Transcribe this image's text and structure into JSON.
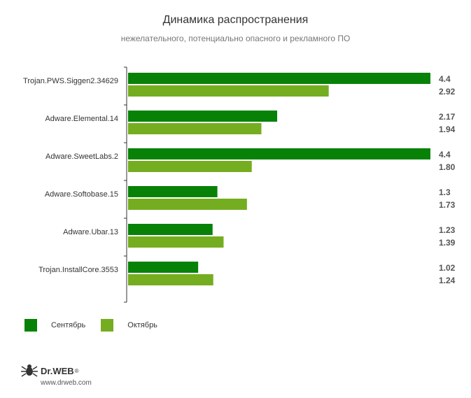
{
  "header": {
    "title": "Динамика распространения",
    "subtitle": "нежелательного, потенциально опасного и рекламного ПО"
  },
  "chart_data": {
    "type": "bar",
    "orientation": "horizontal",
    "title": "Динамика распространения",
    "subtitle": "нежелательного, потенциально опасного и рекламного ПО",
    "categories": [
      "Trojan.PWS.Siggen2.34629",
      "Adware.Elemental.14",
      "Adware.SweetLabs.2",
      "Adware.Softobase.15",
      "Adware.Ubar.13",
      "Trojan.InstallCore.3553"
    ],
    "series": [
      {
        "name": "Сентябрь",
        "color": "#078207",
        "values": [
          4.4,
          2.17,
          4.4,
          1.3,
          1.23,
          1.02
        ],
        "labels": [
          "4.4",
          "2.17",
          "4.4",
          "1.3",
          "1.23",
          "1.02"
        ]
      },
      {
        "name": "Октябрь",
        "color": "#75ad20",
        "values": [
          2.92,
          1.94,
          1.8,
          1.73,
          1.39,
          1.24
        ],
        "labels": [
          "2.92",
          "1.94",
          "1.80",
          "1.73",
          "1.39",
          "1.24"
        ]
      }
    ],
    "xlim": [
      0,
      4.4
    ],
    "grid": false,
    "legend_position": "bottom-left"
  },
  "footer": {
    "brand": "Dr.WEB",
    "registered": "®",
    "url": "www.drweb.com"
  }
}
